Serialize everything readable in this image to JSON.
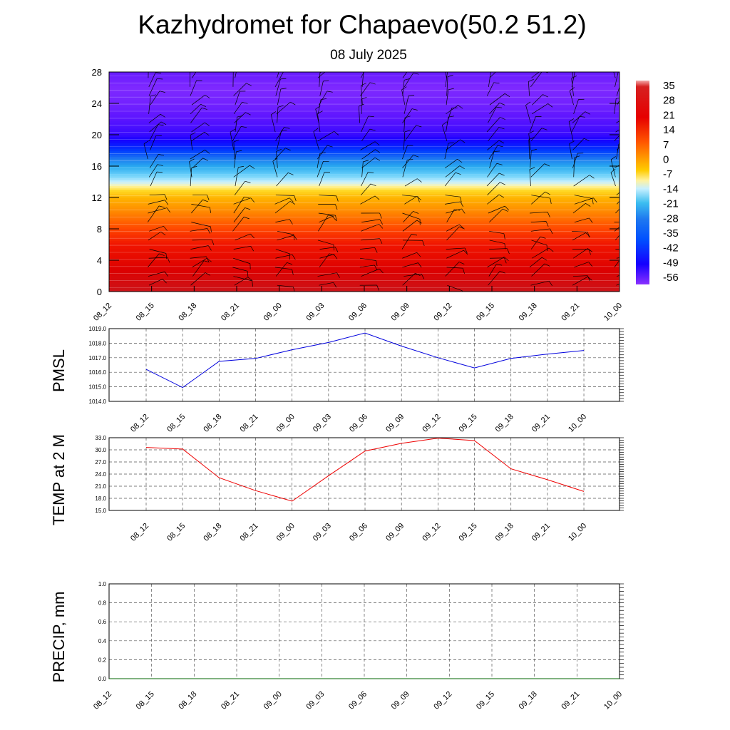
{
  "title": "Kazhydromet for Chapaevo(50.2 51.2)",
  "subtitle": "08 July 2025",
  "time_labels": [
    "08_12",
    "08_15",
    "08_18",
    "08_21",
    "09_00",
    "09_03",
    "09_06",
    "09_09",
    "09_12",
    "09_15",
    "09_18",
    "09_21",
    "10_00"
  ],
  "chart_data": [
    {
      "type": "heatmap",
      "name": "temperature-cross-section",
      "x": [
        "08_12",
        "08_15",
        "08_18",
        "08_21",
        "09_00",
        "09_03",
        "09_06",
        "09_09",
        "09_12",
        "09_15",
        "09_18",
        "09_21",
        "10_00"
      ],
      "yticks": [
        0,
        4,
        8,
        12,
        16,
        20,
        24,
        28
      ],
      "ylim": [
        0,
        28
      ],
      "colorbar": {
        "labels": [
          35,
          28,
          21,
          14,
          7,
          0,
          -7,
          -14,
          -21,
          -28,
          -35,
          -42,
          -49,
          -56
        ],
        "range": [
          -60,
          38
        ]
      },
      "profile": {
        "levels": [
          0,
          2,
          4,
          6,
          8,
          10,
          12,
          13,
          14,
          15,
          16,
          17,
          18,
          19,
          20,
          22,
          24,
          26,
          28
        ],
        "values": [
          31,
          27,
          22,
          18,
          12,
          5,
          -2,
          -8,
          -16,
          -22,
          -28,
          -35,
          -42,
          -48,
          -53,
          -56,
          -58,
          -59,
          -57
        ]
      },
      "overlay": "wind barbs",
      "grid": false
    },
    {
      "type": "line",
      "name": "pmsl",
      "ylabel": "PMSL",
      "x": [
        "08_12",
        "08_15",
        "08_18",
        "08_21",
        "09_00",
        "09_03",
        "09_06",
        "09_09",
        "09_12",
        "09_15",
        "09_18",
        "09_21",
        "10_00"
      ],
      "values": [
        1016.2,
        1014.95,
        1016.75,
        1016.95,
        1017.55,
        1018.05,
        1018.7,
        1017.8,
        1017.0,
        1016.3,
        1016.95,
        1017.25,
        1017.5
      ],
      "yticks": [
        "1014.0",
        "1015.0",
        "1016.0",
        "1017.0",
        "1018.0",
        "1019.0"
      ],
      "ylim": [
        1014.0,
        1019.0
      ],
      "color": "#0000dd",
      "grid": true
    },
    {
      "type": "line",
      "name": "temp-2m",
      "ylabel": "TEMP at 2 M",
      "x": [
        "08_12",
        "08_15",
        "08_18",
        "08_21",
        "09_00",
        "09_03",
        "09_06",
        "09_09",
        "09_12",
        "09_15",
        "09_18",
        "09_21",
        "10_00"
      ],
      "values": [
        30.6,
        30.2,
        23.1,
        19.9,
        17.3,
        23.6,
        29.7,
        31.6,
        32.9,
        32.3,
        25.3,
        22.6,
        19.7
      ],
      "yticks": [
        "15.0",
        "18.0",
        "21.0",
        "24.0",
        "27.0",
        "30.0",
        "33.0"
      ],
      "ylim": [
        15.0,
        33.0
      ],
      "color": "#ee0000",
      "grid": true
    },
    {
      "type": "line",
      "name": "precip",
      "ylabel": "PRECIP, mm",
      "x": [
        "08_12",
        "08_15",
        "08_18",
        "08_21",
        "09_00",
        "09_03",
        "09_06",
        "09_09",
        "09_12",
        "09_15",
        "09_18",
        "09_21",
        "10_00"
      ],
      "values": [
        0,
        0,
        0,
        0,
        0,
        0,
        0,
        0,
        0,
        0,
        0,
        0,
        0
      ],
      "yticks": [
        "0.0",
        "0.2",
        "0.4",
        "0.6",
        "0.8",
        "1.0"
      ],
      "ylim": [
        0.0,
        1.0
      ],
      "color": "#006600",
      "grid": true
    }
  ]
}
